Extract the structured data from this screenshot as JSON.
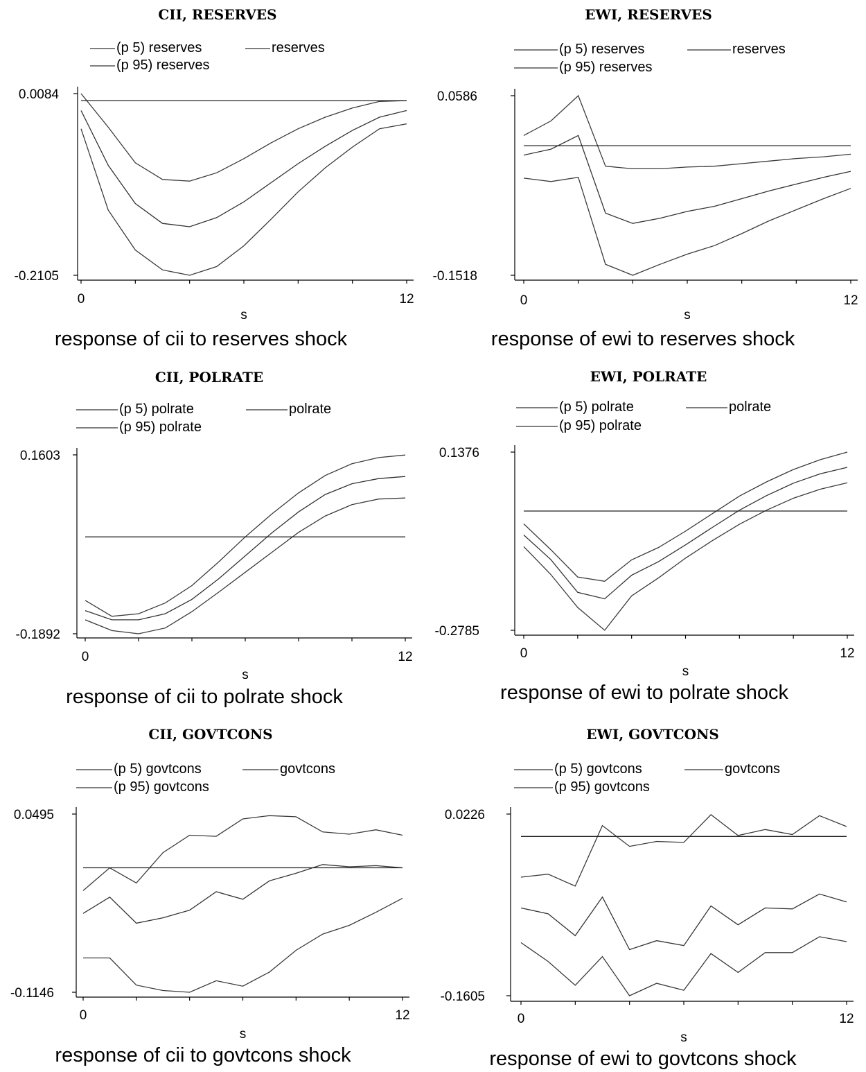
{
  "chart_data": [
    {
      "type": "line",
      "title": "CII, RESERVES",
      "caption": "response of cii to reserves shock",
      "xlabel": "s",
      "xlim": [
        0,
        12
      ],
      "ylim": [
        -0.2105,
        0.0084
      ],
      "yticks": [
        "0.0084",
        "-0.2105"
      ],
      "xticks": [
        "0",
        "12"
      ],
      "x": [
        0,
        1,
        2,
        3,
        4,
        5,
        6,
        7,
        8,
        9,
        10,
        11,
        12
      ],
      "legend": [
        "(p 5) reserves",
        "reserves",
        "(p 95) reserves"
      ],
      "series": [
        {
          "name": "(p 95) reserves",
          "values": [
            0.0084,
            -0.032,
            -0.075,
            -0.095,
            -0.097,
            -0.087,
            -0.07,
            -0.051,
            -0.034,
            -0.02,
            -0.009,
            -0.001,
            0.0
          ]
        },
        {
          "name": "reserves",
          "values": [
            -0.012,
            -0.078,
            -0.124,
            -0.148,
            -0.152,
            -0.141,
            -0.122,
            -0.099,
            -0.076,
            -0.055,
            -0.036,
            -0.02,
            -0.012
          ]
        },
        {
          "name": "(p 5) reserves",
          "values": [
            -0.034,
            -0.132,
            -0.18,
            -0.204,
            -0.2105,
            -0.2,
            -0.175,
            -0.143,
            -0.11,
            -0.081,
            -0.056,
            -0.034,
            -0.028
          ]
        },
        {
          "name": "zero",
          "values": [
            0,
            0,
            0,
            0,
            0,
            0,
            0,
            0,
            0,
            0,
            0,
            0,
            0
          ]
        }
      ]
    },
    {
      "type": "line",
      "title": "EWI, RESERVES",
      "caption": "response of ewi to reserves shock",
      "xlabel": "s",
      "xlim": [
        0,
        12
      ],
      "ylim": [
        -0.1518,
        0.0586
      ],
      "yticks": [
        "0.0586",
        "-0.1518"
      ],
      "xticks": [
        "0",
        "12"
      ],
      "x": [
        0,
        1,
        2,
        3,
        4,
        5,
        6,
        7,
        8,
        9,
        10,
        11,
        12
      ],
      "legend": [
        "(p 5) reserves",
        "reserves",
        "(p 95) reserves"
      ],
      "series": [
        {
          "name": "(p 95) reserves",
          "values": [
            0.012,
            0.029,
            0.0586,
            -0.024,
            -0.027,
            -0.027,
            -0.025,
            -0.024,
            -0.021,
            -0.018,
            -0.015,
            -0.013,
            -0.01
          ]
        },
        {
          "name": "reserves",
          "values": [
            -0.011,
            -0.004,
            0.012,
            -0.079,
            -0.091,
            -0.085,
            -0.077,
            -0.071,
            -0.062,
            -0.053,
            -0.045,
            -0.037,
            -0.03
          ]
        },
        {
          "name": "(p 5) reserves",
          "values": [
            -0.038,
            -0.042,
            -0.037,
            -0.139,
            -0.1518,
            -0.139,
            -0.127,
            -0.117,
            -0.103,
            -0.088,
            -0.075,
            -0.062,
            -0.05
          ]
        },
        {
          "name": "zero",
          "values": [
            0,
            0,
            0,
            0,
            0,
            0,
            0,
            0,
            0,
            0,
            0,
            0,
            0
          ]
        }
      ]
    },
    {
      "type": "line",
      "title": "CII, POLRATE",
      "caption": "response of cii to polrate shock",
      "xlabel": "s",
      "xlim": [
        0,
        12
      ],
      "ylim": [
        -0.1892,
        0.1603
      ],
      "yticks": [
        "0.1603",
        "-0.1892"
      ],
      "xticks": [
        "0",
        "12"
      ],
      "x": [
        0,
        1,
        2,
        3,
        4,
        5,
        6,
        7,
        8,
        9,
        10,
        11,
        12
      ],
      "legend": [
        "(p 5) polrate",
        "polrate",
        "(p 95) polrate"
      ],
      "series": [
        {
          "name": "(p 95) polrate",
          "values": [
            -0.124,
            -0.155,
            -0.15,
            -0.129,
            -0.095,
            -0.049,
            0.0,
            0.045,
            0.086,
            0.12,
            0.143,
            0.155,
            0.16
          ]
        },
        {
          "name": "polrate",
          "values": [
            -0.144,
            -0.162,
            -0.162,
            -0.15,
            -0.122,
            -0.082,
            -0.037,
            0.008,
            0.049,
            0.083,
            0.104,
            0.114,
            0.118
          ]
        },
        {
          "name": "(p 5) polrate",
          "values": [
            -0.162,
            -0.183,
            -0.1892,
            -0.178,
            -0.146,
            -0.108,
            -0.069,
            -0.03,
            0.009,
            0.041,
            0.063,
            0.074,
            0.076
          ]
        },
        {
          "name": "zero",
          "values": [
            0,
            0,
            0,
            0,
            0,
            0,
            0,
            0,
            0,
            0,
            0,
            0,
            0
          ]
        }
      ]
    },
    {
      "type": "line",
      "title": "EWI, POLRATE",
      "caption": "response of ewi to polrate shock",
      "xlabel": "s",
      "xlim": [
        0,
        12
      ],
      "ylim": [
        -0.2785,
        0.1376
      ],
      "yticks": [
        "0.1376",
        "-0.2785"
      ],
      "xticks": [
        "0",
        "12"
      ],
      "x": [
        0,
        1,
        2,
        3,
        4,
        5,
        6,
        7,
        8,
        9,
        10,
        11,
        12
      ],
      "legend": [
        "(p 5) polrate",
        "polrate",
        "(p 95) polrate"
      ],
      "series": [
        {
          "name": "(p 95) polrate",
          "values": [
            -0.03,
            -0.09,
            -0.154,
            -0.164,
            -0.114,
            -0.085,
            -0.047,
            -0.006,
            0.035,
            0.068,
            0.097,
            0.12,
            0.1376
          ]
        },
        {
          "name": "polrate",
          "values": [
            -0.056,
            -0.113,
            -0.19,
            -0.205,
            -0.15,
            -0.118,
            -0.079,
            -0.038,
            0.002,
            0.036,
            0.065,
            0.087,
            0.102
          ]
        },
        {
          "name": "(p 5) polrate",
          "values": [
            -0.083,
            -0.148,
            -0.225,
            -0.2785,
            -0.198,
            -0.156,
            -0.11,
            -0.069,
            -0.031,
            0.002,
            0.03,
            0.051,
            0.066
          ]
        },
        {
          "name": "zero",
          "values": [
            0,
            0,
            0,
            0,
            0,
            0,
            0,
            0,
            0,
            0,
            0,
            0,
            0
          ]
        }
      ]
    },
    {
      "type": "line",
      "title": "CII, GOVTCONS",
      "caption": "response of cii to govtcons shock",
      "xlabel": "s",
      "xlim": [
        0,
        12
      ],
      "ylim": [
        -0.1146,
        0.0495
      ],
      "yticks": [
        "0.0495",
        "-0.1146"
      ],
      "xticks": [
        "0",
        "12"
      ],
      "x": [
        0,
        1,
        2,
        3,
        4,
        5,
        6,
        7,
        8,
        9,
        10,
        11,
        12
      ],
      "legend": [
        "(p 5) govtcons",
        "govtcons",
        "(p 95) govtcons"
      ],
      "series": [
        {
          "name": "(p 95) govtcons",
          "values": [
            -0.021,
            0.0,
            -0.014,
            0.014,
            0.03,
            0.029,
            0.045,
            0.048,
            0.047,
            0.033,
            0.031,
            0.035,
            0.03
          ]
        },
        {
          "name": "govtcons",
          "values": [
            -0.042,
            -0.027,
            -0.051,
            -0.046,
            -0.039,
            -0.022,
            -0.029,
            -0.012,
            -0.005,
            0.003,
            0.001,
            0.002,
            0.0
          ]
        },
        {
          "name": "(p 5) govtcons",
          "values": [
            -0.083,
            -0.083,
            -0.108,
            -0.113,
            -0.1146,
            -0.104,
            -0.109,
            -0.096,
            -0.076,
            -0.061,
            -0.053,
            -0.041,
            -0.028
          ]
        },
        {
          "name": "zero",
          "values": [
            0,
            0,
            0,
            0,
            0,
            0,
            0,
            0,
            0,
            0,
            0,
            0,
            0
          ]
        }
      ]
    },
    {
      "type": "line",
      "title": "EWI, GOVTCONS",
      "caption": "response of ewi to govtcons shock",
      "xlabel": "s",
      "xlim": [
        0,
        12
      ],
      "ylim": [
        -0.1605,
        0.0226
      ],
      "yticks": [
        "0.0226",
        "-0.1605"
      ],
      "xticks": [
        "0",
        "12"
      ],
      "x": [
        0,
        1,
        2,
        3,
        4,
        5,
        6,
        7,
        8,
        9,
        10,
        11,
        12
      ],
      "legend": [
        "(p 5) govtcons",
        "govtcons",
        "(p 95) govtcons"
      ],
      "series": [
        {
          "name": "(p 95) govtcons",
          "values": [
            -0.041,
            -0.038,
            -0.05,
            0.011,
            -0.01,
            -0.005,
            -0.006,
            0.022,
            0.001,
            0.007,
            0.002,
            0.021,
            0.01
          ]
        },
        {
          "name": "govtcons",
          "values": [
            -0.072,
            -0.078,
            -0.1,
            -0.061,
            -0.114,
            -0.105,
            -0.11,
            -0.07,
            -0.089,
            -0.072,
            -0.073,
            -0.058,
            -0.066
          ]
        },
        {
          "name": "(p 5) govtcons",
          "values": [
            -0.107,
            -0.126,
            -0.15,
            -0.121,
            -0.1605,
            -0.148,
            -0.155,
            -0.118,
            -0.137,
            -0.117,
            -0.117,
            -0.101,
            -0.106
          ]
        },
        {
          "name": "zero",
          "values": [
            0,
            0,
            0,
            0,
            0,
            0,
            0,
            0,
            0,
            0,
            0,
            0,
            0
          ]
        }
      ]
    }
  ]
}
